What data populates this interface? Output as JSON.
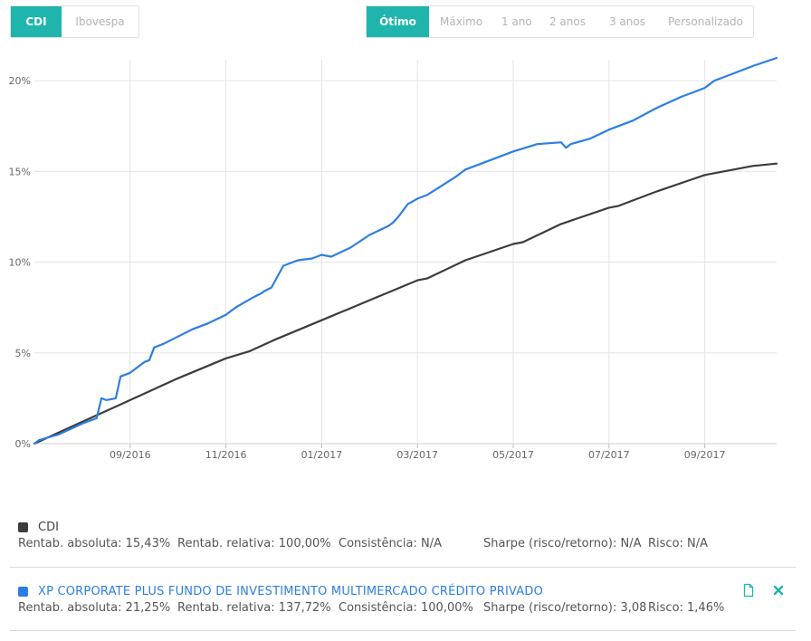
{
  "indices": {
    "tabs": [
      "CDI",
      "Ibovespa"
    ],
    "active": 0
  },
  "periods": {
    "tabs": [
      "Ótimo",
      "Máximo",
      "1 ano",
      "2 anos",
      "3 anos",
      "Personalizado"
    ],
    "active": 0
  },
  "chart_data": {
    "type": "line",
    "x_tick_labels": [
      "09/2016",
      "11/2016",
      "01/2017",
      "03/2017",
      "05/2017",
      "07/2017",
      "09/2017"
    ],
    "x_tick_months": [
      2,
      4,
      6,
      8,
      10,
      12,
      14
    ],
    "y_tick_labels": [
      "0%",
      "5%",
      "10%",
      "15%",
      "20%"
    ],
    "y_ticks": [
      0,
      5,
      10,
      15,
      20
    ],
    "ylim": [
      0,
      21.6
    ],
    "xlim": [
      0,
      15.5
    ],
    "grid": true,
    "series": [
      {
        "name": "CDI",
        "color": "#3c3c3c",
        "x": [
          0,
          1,
          2,
          3,
          4,
          4.5,
          5,
          6,
          7,
          8,
          8.2,
          9,
          10,
          10.2,
          11,
          12,
          12.2,
          13,
          14,
          14.2,
          15,
          15.5
        ],
        "y": [
          0,
          1.2,
          2.4,
          3.6,
          4.7,
          5.1,
          5.7,
          6.8,
          7.9,
          9.0,
          9.1,
          10.1,
          11.0,
          11.1,
          12.1,
          13.0,
          13.1,
          13.9,
          14.8,
          14.9,
          15.3,
          15.43
        ]
      },
      {
        "name": "XP CORPORATE PLUS FUNDO DE INVESTIMENTO MULTIMERCADO CRÉDITO PRIVADO",
        "color": "#2d7ee3",
        "x": [
          0,
          0.1,
          0.5,
          1.0,
          1.3,
          1.4,
          1.5,
          1.7,
          1.8,
          1.9,
          2.0,
          2.1,
          2.2,
          2.3,
          2.4,
          2.5,
          2.7,
          3.0,
          3.3,
          3.6,
          4.0,
          4.2,
          4.4,
          4.6,
          4.75,
          4.8,
          4.95,
          5.2,
          5.5,
          5.8,
          6.0,
          6.2,
          6.6,
          7.0,
          7.4,
          7.5,
          7.6,
          7.8,
          8.0,
          8.2,
          8.5,
          8.8,
          9.0,
          9.5,
          10.0,
          10.5,
          11.0,
          11.1,
          11.2,
          11.6,
          12.0,
          12.5,
          13.0,
          13.5,
          14.0,
          14.2,
          14.5,
          15.0,
          15.5
        ],
        "y": [
          0,
          0.2,
          0.5,
          1.1,
          1.4,
          2.5,
          2.4,
          2.5,
          3.7,
          3.8,
          3.9,
          4.1,
          4.3,
          4.5,
          4.6,
          5.3,
          5.5,
          5.9,
          6.3,
          6.6,
          7.1,
          7.5,
          7.8,
          8.1,
          8.3,
          8.4,
          8.6,
          9.8,
          10.1,
          10.2,
          10.4,
          10.3,
          10.8,
          11.5,
          12.0,
          12.2,
          12.5,
          13.2,
          13.5,
          13.7,
          14.2,
          14.7,
          15.1,
          15.6,
          16.1,
          16.5,
          16.6,
          16.3,
          16.5,
          16.8,
          17.3,
          17.8,
          18.5,
          19.1,
          19.6,
          20.0,
          20.3,
          20.8,
          21.25
        ]
      }
    ]
  },
  "legend": [
    {
      "name": "CDI",
      "color": "#3c3c3c",
      "stats": {
        "abs": "Rentab. absoluta: 15,43%",
        "rel": "Rentab. relativa: 100,00%",
        "cons": "Consistência: N/A",
        "sharpe": "Sharpe (risco/retorno): N/A",
        "risk": "Risco: N/A"
      }
    },
    {
      "name": "XP CORPORATE PLUS FUNDO DE INVESTIMENTO MULTIMERCADO CRÉDITO PRIVADO",
      "color": "#2d7ee3",
      "stats": {
        "abs": "Rentab. absoluta: 21,25%",
        "rel": "Rentab. relativa: 137,72%",
        "cons": "Consistência: 100,00%",
        "sharpe": "Sharpe (risco/retorno): 3,08",
        "risk": "Risco: 1,46%"
      }
    }
  ],
  "actions": {
    "document_icon": "document-icon",
    "remove_icon": "close-icon",
    "icon_color": "#1fb5ad"
  }
}
